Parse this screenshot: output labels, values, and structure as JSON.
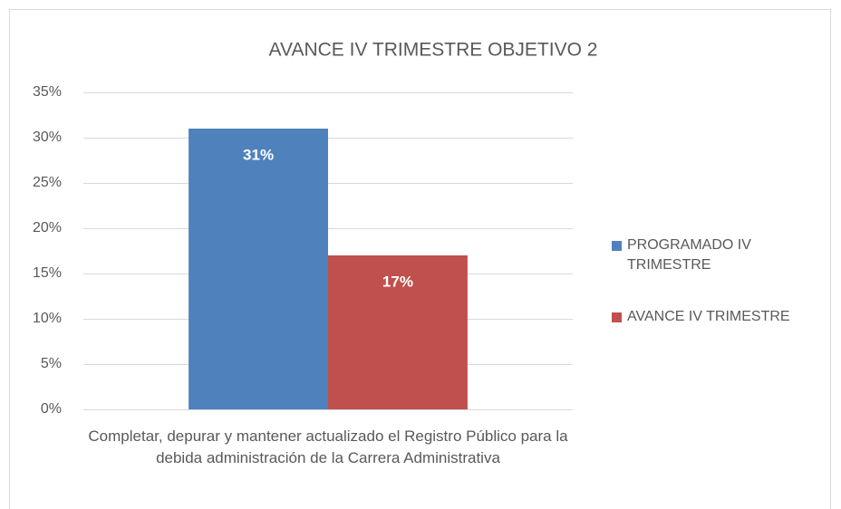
{
  "chart_data": {
    "type": "bar",
    "title": "AVANCE IV TRIMESTRE OBJETIVO 2",
    "categories": [
      "Completar, depurar y mantener actualizado el Registro Público para la debida administración de la Carrera Administrativa"
    ],
    "series": [
      {
        "name": "PROGRAMADO IV TRIMESTRE",
        "color": "#4f81bd",
        "values": [
          31
        ],
        "value_labels": [
          "31%"
        ]
      },
      {
        "name": "AVANCE IV TRIMESTRE",
        "color": "#c0504d",
        "values": [
          17
        ],
        "value_labels": [
          "17%"
        ]
      }
    ],
    "ylim": [
      0,
      35
    ],
    "yticks": [
      {
        "value": 0,
        "label": "0%"
      },
      {
        "value": 5,
        "label": "5%"
      },
      {
        "value": 10,
        "label": "10%"
      },
      {
        "value": 15,
        "label": "15%"
      },
      {
        "value": 20,
        "label": "20%"
      },
      {
        "value": 25,
        "label": "25%"
      },
      {
        "value": 30,
        "label": "30%"
      },
      {
        "value": 35,
        "label": "35%"
      }
    ],
    "grid": true,
    "legend": "right"
  }
}
